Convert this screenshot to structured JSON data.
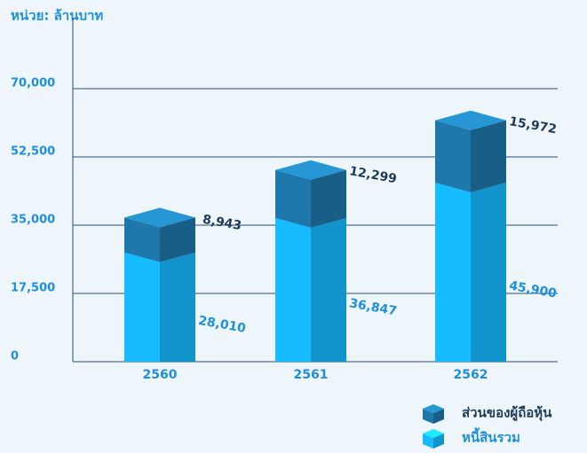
{
  "chart_data": {
    "type": "stacked_bar_3d",
    "unit_label": "หน่วย: ล้านบาท",
    "categories": [
      "2560",
      "2561",
      "2562"
    ],
    "series": [
      {
        "name": "หนี้สินรวม",
        "color": "#14aef0",
        "values": [
          28010,
          36847,
          45900
        ],
        "value_labels": [
          "28,010",
          "36,847",
          "45,900"
        ]
      },
      {
        "name": "ส่วนของผู้ถือหุ้น",
        "color": "#1d6f9e",
        "values": [
          8943,
          12299,
          15972
        ],
        "value_labels": [
          "8,943",
          "12,299",
          "15,972"
        ]
      }
    ],
    "ylim": [
      0,
      87500
    ],
    "yticks": [
      0,
      {
        "value": 17500,
        "label": "17,500"
      },
      {
        "value": 35000,
        "label": "35,000"
      },
      {
        "value": 52500,
        "label": "52,500"
      },
      {
        "value": 70000,
        "label": "70,000"
      }
    ],
    "grid": true,
    "legend": "bottom-right"
  }
}
